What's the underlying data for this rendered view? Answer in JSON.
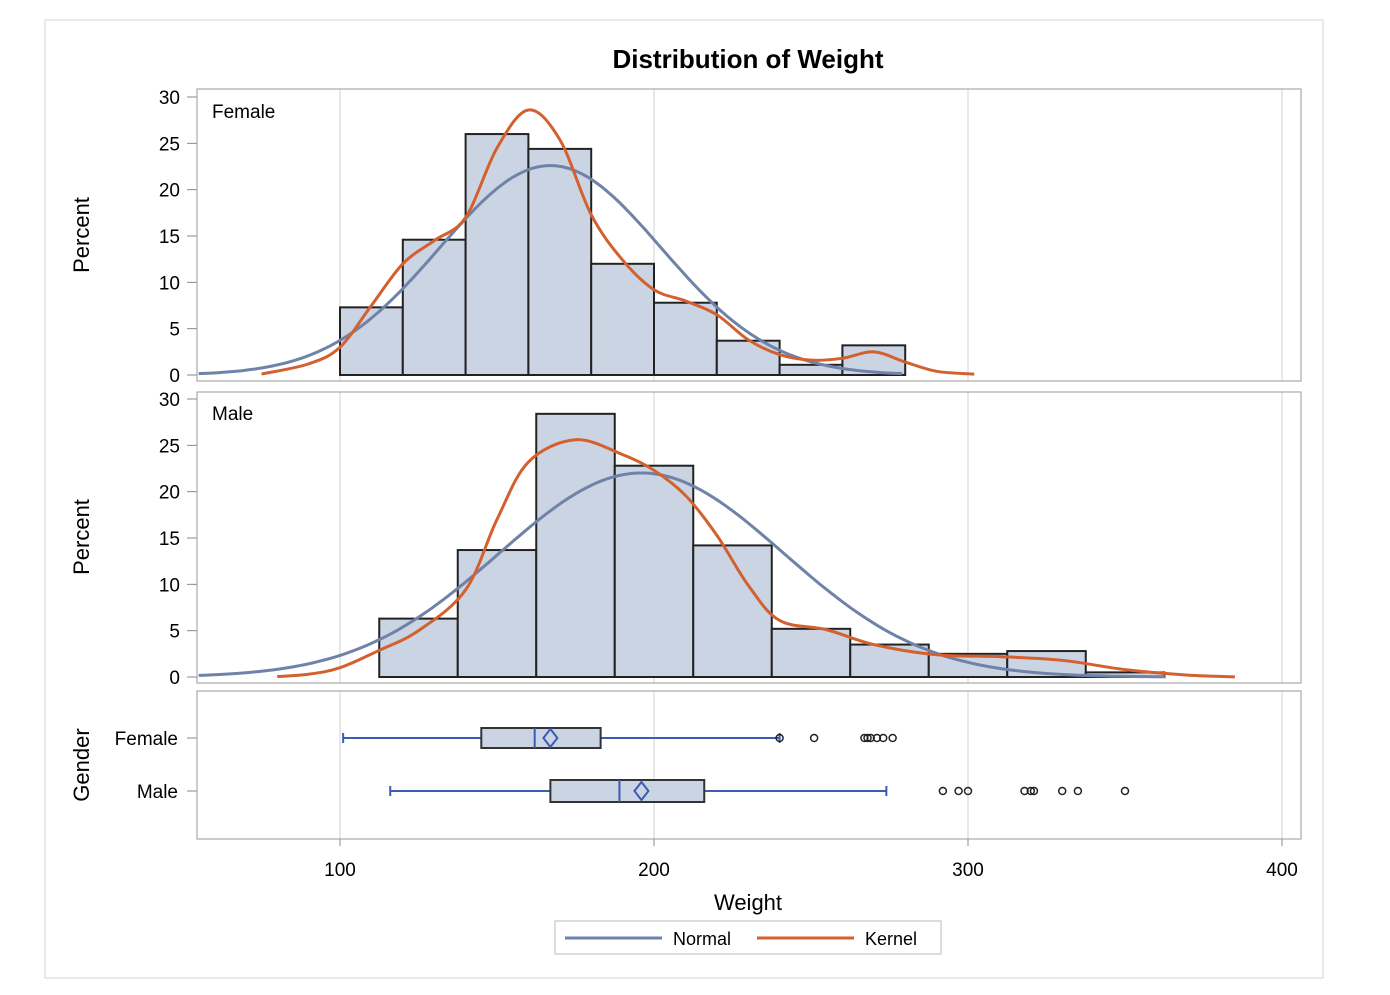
{
  "chart_data": [
    {
      "type": "bar",
      "panel": "Female",
      "title": "Distribution of Weight",
      "ylabel": "Percent",
      "ylim": [
        0,
        30
      ],
      "yticks": [
        0,
        5,
        10,
        15,
        20,
        25,
        30
      ],
      "bin_edges": [
        100,
        120,
        140,
        160,
        180,
        200,
        220,
        240,
        260,
        280
      ],
      "values": [
        7.3,
        14.6,
        26.0,
        24.4,
        12.0,
        7.8,
        3.7,
        1.1,
        3.2
      ],
      "normal": {
        "mean": 167,
        "sd": 35.3,
        "bin_width": 20
      },
      "kernel": [
        [
          75,
          0.1
        ],
        [
          90,
          1.2
        ],
        [
          100,
          3
        ],
        [
          110,
          7.5
        ],
        [
          120,
          12
        ],
        [
          130,
          14.5
        ],
        [
          140,
          17
        ],
        [
          150,
          24.5
        ],
        [
          160,
          28.6
        ],
        [
          170,
          25.4
        ],
        [
          180,
          17.3
        ],
        [
          190,
          12.4
        ],
        [
          200,
          9.2
        ],
        [
          210,
          8
        ],
        [
          220,
          6.5
        ],
        [
          230,
          3.8
        ],
        [
          240,
          2.2
        ],
        [
          250,
          1.6
        ],
        [
          260,
          1.8
        ],
        [
          270,
          2.5
        ],
        [
          280,
          1.4
        ],
        [
          290,
          0.4
        ],
        [
          302,
          0.1
        ]
      ]
    },
    {
      "type": "bar",
      "panel": "Male",
      "ylabel": "Percent",
      "ylim": [
        0,
        30
      ],
      "yticks": [
        0,
        5,
        10,
        15,
        20,
        25,
        30
      ],
      "bin_edges": [
        112.5,
        137.5,
        162.5,
        187.5,
        212.5,
        237.5,
        262.5,
        287.5,
        312.5,
        337.5,
        362.5
      ],
      "values": [
        6.3,
        13.7,
        28.4,
        22.8,
        14.2,
        5.2,
        3.5,
        2.5,
        2.8,
        0.5
      ],
      "normal": {
        "mean": 196,
        "sd": 45.3,
        "bin_width": 25
      },
      "kernel": [
        [
          80,
          0.05
        ],
        [
          90,
          0.3
        ],
        [
          100,
          1
        ],
        [
          112,
          2.8
        ],
        [
          125,
          5
        ],
        [
          140,
          9.4
        ],
        [
          150,
          17
        ],
        [
          160,
          23.2
        ],
        [
          175,
          25.6
        ],
        [
          190,
          24
        ],
        [
          200,
          22.3
        ],
        [
          210,
          19.6
        ],
        [
          220,
          15.3
        ],
        [
          230,
          9.9
        ],
        [
          240,
          6.1
        ],
        [
          255,
          5.1
        ],
        [
          270,
          3.5
        ],
        [
          290,
          2.4
        ],
        [
          310,
          2.2
        ],
        [
          330,
          1.8
        ],
        [
          350,
          0.8
        ],
        [
          370,
          0.2
        ],
        [
          385,
          0.02
        ]
      ]
    },
    {
      "type": "boxplot",
      "ylabel": "Gender",
      "categories": [
        "Female",
        "Male"
      ],
      "boxes": [
        {
          "min": 101,
          "q1": 145,
          "median": 162,
          "mean": 167,
          "q3": 183,
          "max": 240,
          "outliers": [
            240,
            251,
            267,
            268,
            269,
            271,
            273,
            276
          ]
        },
        {
          "min": 116,
          "q1": 167,
          "median": 189,
          "mean": 196,
          "q3": 216,
          "max": 274,
          "outliers": [
            292,
            297,
            300,
            318,
            320,
            321,
            330,
            335,
            350
          ]
        }
      ],
      "xlabel": "Weight",
      "xlim": [
        54,
        406
      ],
      "xticks": [
        100,
        200,
        300,
        400
      ]
    }
  ],
  "title": "Distribution of Weight",
  "legend": {
    "position": "bottom",
    "items": [
      {
        "name": "Normal",
        "color": "#6f82a8"
      },
      {
        "name": "Kernel",
        "color": "#d3602f"
      }
    ]
  },
  "colors": {
    "bar": "#cbd4e3",
    "box_line": "#3b5bb5"
  }
}
